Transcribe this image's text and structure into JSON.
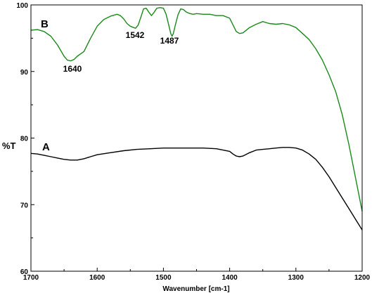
{
  "chart_data": {
    "type": "line",
    "xlabel": "Wavenumber [cm-1]",
    "ylabel": "%T",
    "xlim": [
      1700,
      1200
    ],
    "ylim": [
      60,
      100
    ],
    "x_reversed": true,
    "x_ticks": [
      "1700",
      "1600",
      "1500",
      "1400",
      "1300",
      "1200"
    ],
    "y_ticks": [
      "60",
      "70",
      "80",
      "90",
      "100"
    ],
    "grid": false,
    "series": [
      {
        "name": "B",
        "color": "#1a8a1a",
        "x": [
          1700,
          1690,
          1680,
          1670,
          1660,
          1650,
          1645,
          1640,
          1635,
          1630,
          1620,
          1610,
          1600,
          1590,
          1580,
          1570,
          1565,
          1560,
          1555,
          1550,
          1545,
          1542,
          1538,
          1534,
          1530,
          1526,
          1522,
          1518,
          1514,
          1510,
          1505,
          1500,
          1496,
          1492,
          1489,
          1487,
          1485,
          1482,
          1478,
          1474,
          1470,
          1465,
          1460,
          1455,
          1450,
          1440,
          1430,
          1420,
          1410,
          1400,
          1395,
          1390,
          1385,
          1380,
          1370,
          1360,
          1350,
          1340,
          1330,
          1320,
          1310,
          1300,
          1290,
          1280,
          1270,
          1260,
          1250,
          1240,
          1230,
          1220,
          1210,
          1205,
          1200
        ],
        "y": [
          96.2,
          96.3,
          96.0,
          95.3,
          94.0,
          92.3,
          91.7,
          91.6,
          91.8,
          92.3,
          93.0,
          95.0,
          96.8,
          97.8,
          98.3,
          98.6,
          98.4,
          97.9,
          97.2,
          96.8,
          96.6,
          96.5,
          97.0,
          98.2,
          99.4,
          99.5,
          98.9,
          98.4,
          98.9,
          99.5,
          99.6,
          99.5,
          98.6,
          97.0,
          95.7,
          95.3,
          95.7,
          97.0,
          98.5,
          99.4,
          99.3,
          98.9,
          98.7,
          98.6,
          98.7,
          98.6,
          98.6,
          98.4,
          98.4,
          98.0,
          97.0,
          96.0,
          95.7,
          95.8,
          96.6,
          97.1,
          97.5,
          97.2,
          97.1,
          97.2,
          97.0,
          96.6,
          95.7,
          94.8,
          93.4,
          91.7,
          89.5,
          87.0,
          83.5,
          79.0,
          74.0,
          71.5,
          69.0
        ]
      },
      {
        "name": "A",
        "color": "#000000",
        "x": [
          1700,
          1690,
          1680,
          1670,
          1660,
          1650,
          1640,
          1630,
          1620,
          1610,
          1600,
          1580,
          1560,
          1540,
          1520,
          1500,
          1480,
          1460,
          1440,
          1420,
          1400,
          1395,
          1390,
          1385,
          1380,
          1370,
          1360,
          1350,
          1340,
          1330,
          1320,
          1310,
          1300,
          1290,
          1280,
          1270,
          1260,
          1250,
          1240,
          1230,
          1220,
          1210,
          1200
        ],
        "y": [
          77.7,
          77.6,
          77.4,
          77.2,
          77.0,
          76.8,
          76.7,
          76.7,
          76.9,
          77.2,
          77.5,
          77.8,
          78.1,
          78.3,
          78.4,
          78.5,
          78.5,
          78.5,
          78.5,
          78.4,
          78.0,
          77.6,
          77.3,
          77.2,
          77.3,
          77.8,
          78.2,
          78.3,
          78.4,
          78.5,
          78.6,
          78.6,
          78.5,
          78.2,
          77.6,
          76.8,
          75.6,
          74.2,
          72.6,
          71.0,
          69.4,
          67.8,
          66.2
        ]
      }
    ],
    "annotations": [
      "1640",
      "1542",
      "1487"
    ]
  }
}
